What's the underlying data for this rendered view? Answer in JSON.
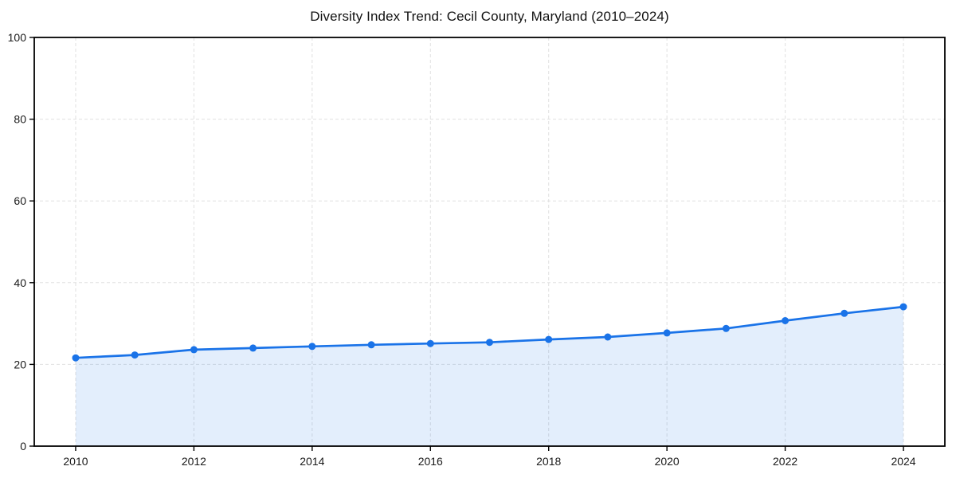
{
  "chart_data": {
    "type": "area",
    "title": "Diversity Index Trend: Cecil County, Maryland (2010–2024)",
    "xlabel": "",
    "ylabel": "",
    "x": [
      2010,
      2011,
      2012,
      2013,
      2014,
      2015,
      2016,
      2017,
      2018,
      2019,
      2020,
      2021,
      2022,
      2023,
      2024
    ],
    "series": [
      {
        "name": "Diversity Index",
        "values": [
          21.6,
          22.3,
          23.6,
          24.0,
          24.4,
          24.8,
          25.1,
          25.4,
          26.1,
          26.7,
          27.7,
          28.8,
          30.7,
          32.5,
          34.1
        ]
      }
    ],
    "ylim": [
      0,
      100
    ],
    "yticks": [
      0,
      20,
      40,
      60,
      80,
      100
    ],
    "xticks": [
      2010,
      2012,
      2014,
      2016,
      2018,
      2020,
      2022,
      2024
    ],
    "grid": true,
    "grid_style": "dashed",
    "legend_position": "none",
    "colors": {
      "line": "#1a73e8",
      "fill": "rgba(26,115,232,0.12)",
      "grid": "#e0e0e0",
      "axis": "#000000",
      "text": "#1a1a1a",
      "background": "#ffffff"
    }
  }
}
